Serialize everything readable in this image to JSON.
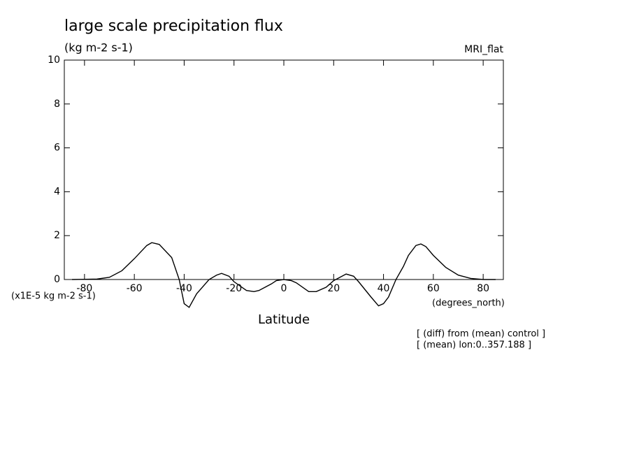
{
  "chart_data": {
    "type": "line",
    "title": "large scale precipitation flux",
    "subtitle": "(kg m-2 s-1)",
    "dataset": "MRI_flat",
    "y_units_label": "(x1E-5 kg m-2 s-1)",
    "x_units_label": "(degrees_north)",
    "xlabel": "Latitude",
    "annotations": [
      "[ (diff) from (mean) control ]",
      "[ (mean) lon:0..357.188 ]"
    ],
    "color": "#000000",
    "x": [
      -85,
      -75,
      -70,
      -65,
      -60,
      -55,
      -53,
      -50,
      -45,
      -42,
      -40,
      -38,
      -35,
      -30,
      -27,
      -25,
      -22,
      -20,
      -15,
      -12,
      -10,
      -5,
      -3,
      0,
      3,
      5,
      10,
      13,
      17,
      20,
      25,
      28,
      30,
      35,
      38,
      40,
      42,
      45,
      48,
      50,
      53,
      55,
      57,
      60,
      65,
      70,
      75,
      80,
      85
    ],
    "values": [
      0,
      0.02,
      0.1,
      0.4,
      0.95,
      1.55,
      1.68,
      1.6,
      1.0,
      0.0,
      -1.1,
      -1.27,
      -0.65,
      0,
      0.2,
      0.28,
      0.15,
      -0.1,
      -0.5,
      -0.55,
      -0.5,
      -0.2,
      -0.05,
      0,
      -0.05,
      -0.15,
      -0.55,
      -0.55,
      -0.35,
      -0.05,
      0.25,
      0.15,
      -0.1,
      -0.8,
      -1.2,
      -1.1,
      -0.8,
      0.0,
      0.6,
      1.1,
      1.55,
      1.62,
      1.5,
      1.1,
      0.55,
      0.2,
      0.05,
      0,
      0
    ],
    "xlim": [
      -88.1,
      88.1
    ],
    "ylim": [
      0,
      10
    ],
    "xticks": [
      -80,
      -60,
      -40,
      -20,
      0,
      20,
      40,
      60,
      80
    ],
    "yticks": [
      0,
      2,
      4,
      6,
      8,
      10
    ]
  }
}
